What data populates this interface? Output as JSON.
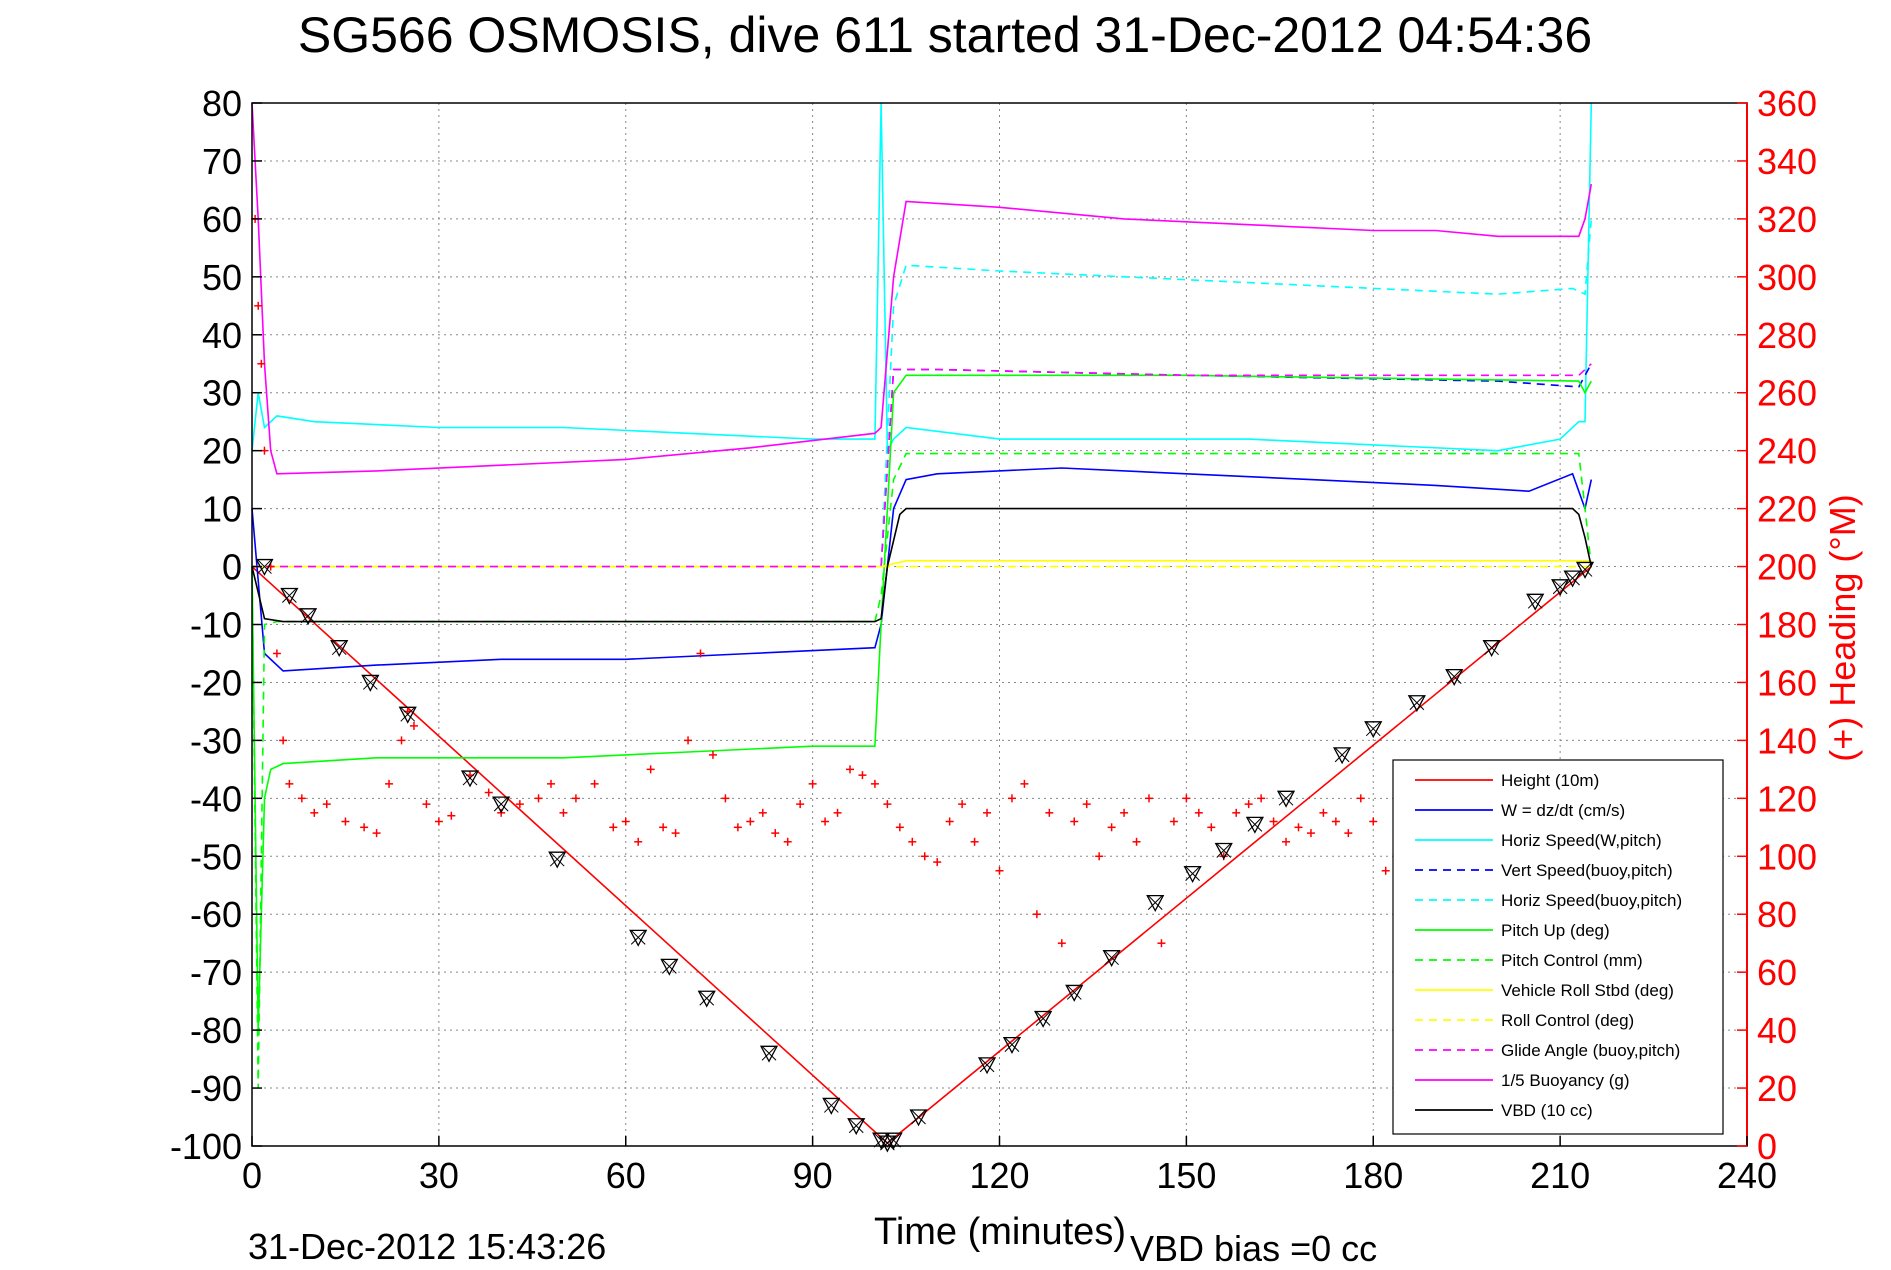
{
  "title": "SG566 OSMOSIS, dive 611 started 31-Dec-2012 04:54:36",
  "timestamp": "31-Dec-2012 15:43:26",
  "vbd_bias": "VBD bias =0 cc",
  "chart_data": {
    "type": "line",
    "xlabel": "Time (minutes)",
    "ylabel": "",
    "y2label": "(+) Heading (°M)",
    "xlim": [
      0,
      240
    ],
    "ylim": [
      -100,
      80
    ],
    "y2lim": [
      0,
      360
    ],
    "grid": true,
    "legend_placement": "bottom-right",
    "x_ticks": [
      "0",
      "30",
      "60",
      "90",
      "120",
      "150",
      "180",
      "210",
      "240"
    ],
    "y_ticks": [
      "80",
      "70",
      "60",
      "50",
      "40",
      "30",
      "20",
      "10",
      "0",
      "-10",
      "-20",
      "-30",
      "-40",
      "-50",
      "-60",
      "-70",
      "-80",
      "-90",
      "-100"
    ],
    "y2_ticks": [
      "360",
      "340",
      "320",
      "300",
      "280",
      "260",
      "240",
      "220",
      "200",
      "180",
      "160",
      "140",
      "120",
      "100",
      "80",
      "60",
      "40",
      "20",
      "0"
    ],
    "series": [
      {
        "name": "Height (10m)",
        "color": "#ff0000",
        "dash": "",
        "x": [
          0,
          102,
          215
        ],
        "y": [
          0,
          -99.5,
          0
        ]
      },
      {
        "name": "W = dz/dt (cm/s)",
        "color": "#0000ff",
        "dash": "",
        "x": [
          0,
          2,
          5,
          20,
          40,
          60,
          80,
          100,
          101,
          103,
          105,
          110,
          130,
          150,
          170,
          190,
          205,
          212,
          214,
          215
        ],
        "y": [
          10,
          -15,
          -18,
          -17,
          -16,
          -16,
          -15,
          -14,
          -10,
          10,
          15,
          16,
          17,
          16,
          15,
          14,
          13,
          16,
          10,
          15
        ]
      },
      {
        "name": "Horiz Speed(W,pitch)",
        "color": "#00ffff",
        "dash": "",
        "x": [
          0,
          1,
          2,
          4,
          10,
          30,
          50,
          70,
          90,
          100,
          101,
          102,
          103,
          105,
          120,
          140,
          160,
          180,
          200,
          210,
          213,
          214,
          215
        ],
        "y": [
          20,
          30,
          24,
          26,
          25,
          24,
          24,
          23,
          22,
          22,
          80,
          20,
          22,
          24,
          22,
          22,
          22,
          21,
          20,
          22,
          25,
          25,
          80
        ]
      },
      {
        "name": "Vert Speed(buoy,pitch)",
        "color": "#0000ff",
        "dash": "8,6",
        "x": [
          0,
          101,
          103,
          110,
          150,
          200,
          213,
          215
        ],
        "y": [
          0,
          0,
          34,
          34,
          33,
          32,
          31,
          35
        ]
      },
      {
        "name": "Horiz Speed(buoy,pitch)",
        "color": "#00ffff",
        "dash": "8,6",
        "x": [
          0,
          101,
          103,
          105,
          120,
          140,
          160,
          180,
          200,
          212,
          214,
          215
        ],
        "y": [
          0,
          0,
          45,
          52,
          51,
          50,
          49,
          48,
          47,
          48,
          47,
          60
        ]
      },
      {
        "name": "Pitch Up (deg)",
        "color": "#00ff00",
        "dash": "",
        "x": [
          0,
          1,
          2,
          3,
          5,
          20,
          50,
          70,
          90,
          100,
          101,
          102,
          103,
          105,
          150,
          213,
          214,
          215
        ],
        "y": [
          0,
          -80,
          -40,
          -35,
          -34,
          -33,
          -33,
          -32,
          -31,
          -31,
          -10,
          10,
          30,
          33,
          33,
          32,
          30,
          32
        ]
      },
      {
        "name": "Pitch Control (mm)",
        "color": "#00ff00",
        "dash": "8,6",
        "x": [
          0,
          1,
          2,
          4,
          100,
          101,
          103,
          105,
          213,
          214,
          215
        ],
        "y": [
          0,
          -90,
          -10,
          -9.5,
          -9.5,
          -5,
          15,
          19.5,
          19.5,
          10,
          0
        ]
      },
      {
        "name": "Vehicle Roll Stbd (deg)",
        "color": "#ffff00",
        "dash": "",
        "x": [
          0,
          5,
          50,
          100,
          101,
          105,
          150,
          200,
          215
        ],
        "y": [
          0,
          0,
          0,
          0,
          0,
          1,
          1,
          1,
          1
        ]
      },
      {
        "name": "Roll Control (deg)",
        "color": "#ffff00",
        "dash": "8,6",
        "x": [
          0,
          20,
          21,
          40,
          41,
          100,
          101,
          215
        ],
        "y": [
          0,
          0,
          0,
          0,
          0,
          0,
          0,
          0
        ]
      },
      {
        "name": "Glide Angle (buoy,pitch)",
        "color": "#ff00ff",
        "dash": "8,6",
        "x": [
          0,
          101,
          103,
          110,
          150,
          213,
          215
        ],
        "y": [
          0,
          0,
          34,
          34,
          33,
          33,
          35
        ]
      },
      {
        "name": "1/5 Buoyancy (g)",
        "color": "#ff00ff",
        "dash": "",
        "x": [
          0,
          1,
          2,
          3,
          4,
          20,
          40,
          60,
          80,
          100,
          101,
          103,
          105,
          120,
          140,
          160,
          180,
          190,
          200,
          213,
          214,
          215
        ],
        "y": [
          80,
          60,
          35,
          20,
          16,
          16.5,
          17.5,
          18.5,
          20.5,
          23,
          24,
          50,
          63,
          62,
          60,
          59,
          58,
          58,
          57,
          57,
          60,
          66
        ]
      },
      {
        "name": "VBD (10 cc)",
        "color": "#000000",
        "dash": "",
        "x": [
          0,
          2,
          5,
          100,
          101,
          102,
          104,
          105,
          212,
          213,
          214,
          215
        ],
        "y": [
          0,
          -9,
          -9.5,
          -9.5,
          -9,
          0,
          9,
          10,
          10,
          9,
          5,
          0
        ]
      }
    ],
    "heading_series": {
      "name": "Heading",
      "axis": "right",
      "color": "#ff0000",
      "marker": "+",
      "x": [
        0.5,
        1,
        1.5,
        2,
        3,
        4,
        5,
        6,
        8,
        10,
        12,
        15,
        18,
        20,
        22,
        24,
        25,
        26,
        28,
        30,
        32,
        35,
        38,
        40,
        43,
        46,
        48,
        50,
        52,
        55,
        58,
        60,
        62,
        64,
        66,
        68,
        70,
        72,
        74,
        76,
        78,
        80,
        82,
        84,
        86,
        88,
        90,
        92,
        94,
        96,
        98,
        100,
        102,
        104,
        106,
        108,
        110,
        112,
        114,
        116,
        118,
        120,
        122,
        124,
        126,
        128,
        130,
        132,
        134,
        136,
        138,
        140,
        142,
        144,
        146,
        148,
        150,
        152,
        154,
        156,
        158,
        160,
        162,
        164,
        166,
        168,
        170,
        172,
        174,
        176,
        178,
        180,
        182,
        184
      ],
      "y": [
        320,
        290,
        270,
        240,
        200,
        170,
        140,
        125,
        120,
        115,
        118,
        112,
        110,
        108,
        125,
        140,
        150,
        145,
        118,
        112,
        114,
        128,
        122,
        115,
        118,
        120,
        125,
        115,
        120,
        125,
        110,
        112,
        105,
        130,
        110,
        108,
        140,
        170,
        135,
        120,
        110,
        112,
        115,
        108,
        105,
        118,
        125,
        112,
        115,
        130,
        128,
        125,
        118,
        110,
        105,
        100,
        98,
        112,
        118,
        105,
        115,
        95,
        120,
        125,
        80,
        115,
        70,
        112,
        118,
        100,
        110,
        115,
        105,
        120,
        70,
        112,
        120,
        115,
        110,
        100,
        115,
        118,
        120,
        112,
        105,
        110,
        108,
        115,
        112,
        108,
        120,
        112,
        95,
        98
      ]
    },
    "depth_markers": {
      "x": [
        2,
        6,
        9,
        14,
        19,
        25,
        35,
        40,
        49,
        62,
        67,
        73,
        83,
        93,
        97,
        101,
        102,
        103,
        107,
        118,
        122,
        127,
        132,
        138,
        145,
        151,
        156,
        161,
        166,
        175,
        180,
        187,
        193,
        199,
        206,
        210,
        212,
        214
      ],
      "y": [
        0,
        -5,
        -8.5,
        -14,
        -20,
        -25.5,
        -36.5,
        -41,
        -50.5,
        -64,
        -69,
        -74.5,
        -84,
        -93,
        -96.5,
        -99,
        -99.5,
        -99,
        -95,
        -86,
        -82.5,
        -78,
        -73.5,
        -67.5,
        -58,
        -53,
        -49,
        -44.5,
        -40,
        -32.5,
        -28,
        -23.5,
        -19,
        -14,
        -6,
        -3.5,
        -2,
        -0.5
      ]
    }
  }
}
